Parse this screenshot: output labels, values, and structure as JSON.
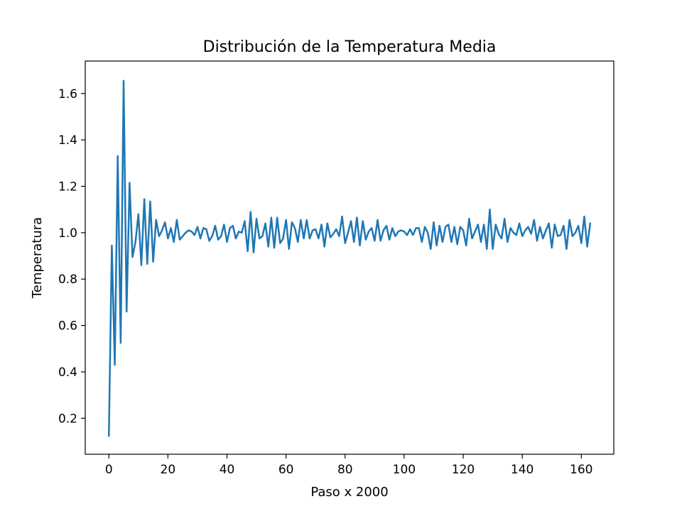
{
  "chart_data": {
    "type": "line",
    "title": "Distribución de la Temperatura Media",
    "xlabel": "Paso x 2000",
    "ylabel": "Temperatura",
    "xlim": [
      -8,
      171
    ],
    "ylim": [
      0.045,
      1.74
    ],
    "xticks": [
      0,
      20,
      40,
      60,
      80,
      100,
      120,
      140,
      160
    ],
    "yticks": [
      0.2,
      0.4,
      0.6,
      0.8,
      1.0,
      1.2,
      1.4,
      1.6
    ],
    "grid": false,
    "series": [
      {
        "color": "#1f77b4",
        "x_start": 0,
        "x_step": 1,
        "values": [
          0.125,
          0.945,
          0.43,
          1.33,
          0.525,
          1.655,
          0.66,
          1.215,
          0.895,
          0.96,
          1.08,
          0.86,
          1.145,
          0.865,
          1.135,
          0.875,
          1.055,
          0.985,
          1.01,
          1.045,
          0.975,
          1.02,
          0.96,
          1.055,
          0.97,
          0.985,
          1.0,
          1.01,
          1.005,
          0.99,
          1.025,
          0.975,
          1.02,
          1.015,
          0.965,
          0.985,
          1.03,
          0.97,
          0.985,
          1.035,
          0.96,
          1.02,
          1.03,
          0.975,
          1.005,
          1.0,
          1.05,
          0.92,
          1.09,
          0.915,
          1.06,
          0.975,
          0.985,
          1.04,
          0.94,
          1.065,
          0.935,
          1.065,
          0.955,
          0.975,
          1.055,
          0.93,
          1.045,
          1.02,
          0.96,
          1.055,
          0.975,
          1.055,
          0.975,
          1.01,
          1.015,
          0.975,
          1.035,
          0.94,
          1.04,
          0.98,
          0.995,
          1.015,
          0.985,
          1.07,
          0.955,
          1.0,
          1.05,
          0.96,
          1.065,
          0.945,
          1.05,
          0.97,
          1.005,
          1.02,
          0.965,
          1.055,
          0.965,
          1.01,
          1.03,
          0.97,
          1.02,
          0.985,
          1.005,
          1.01,
          1.005,
          0.99,
          1.015,
          0.99,
          1.02,
          1.02,
          0.96,
          1.025,
          1.0,
          0.93,
          1.045,
          0.945,
          1.03,
          0.96,
          1.025,
          1.035,
          0.96,
          1.025,
          0.95,
          1.025,
          1.01,
          0.945,
          1.06,
          0.975,
          1.005,
          1.035,
          0.96,
          1.035,
          0.93,
          1.1,
          0.93,
          1.035,
          0.995,
          0.975,
          1.06,
          0.96,
          1.02,
          1.0,
          0.99,
          1.04,
          0.985,
          1.01,
          1.025,
          0.995,
          1.055,
          0.965,
          1.025,
          0.975,
          1.01,
          1.04,
          0.935,
          1.035,
          0.985,
          0.99,
          1.03,
          0.93,
          1.055,
          0.985,
          1.0,
          1.03,
          0.955,
          1.07,
          0.94,
          1.04
        ]
      }
    ]
  }
}
